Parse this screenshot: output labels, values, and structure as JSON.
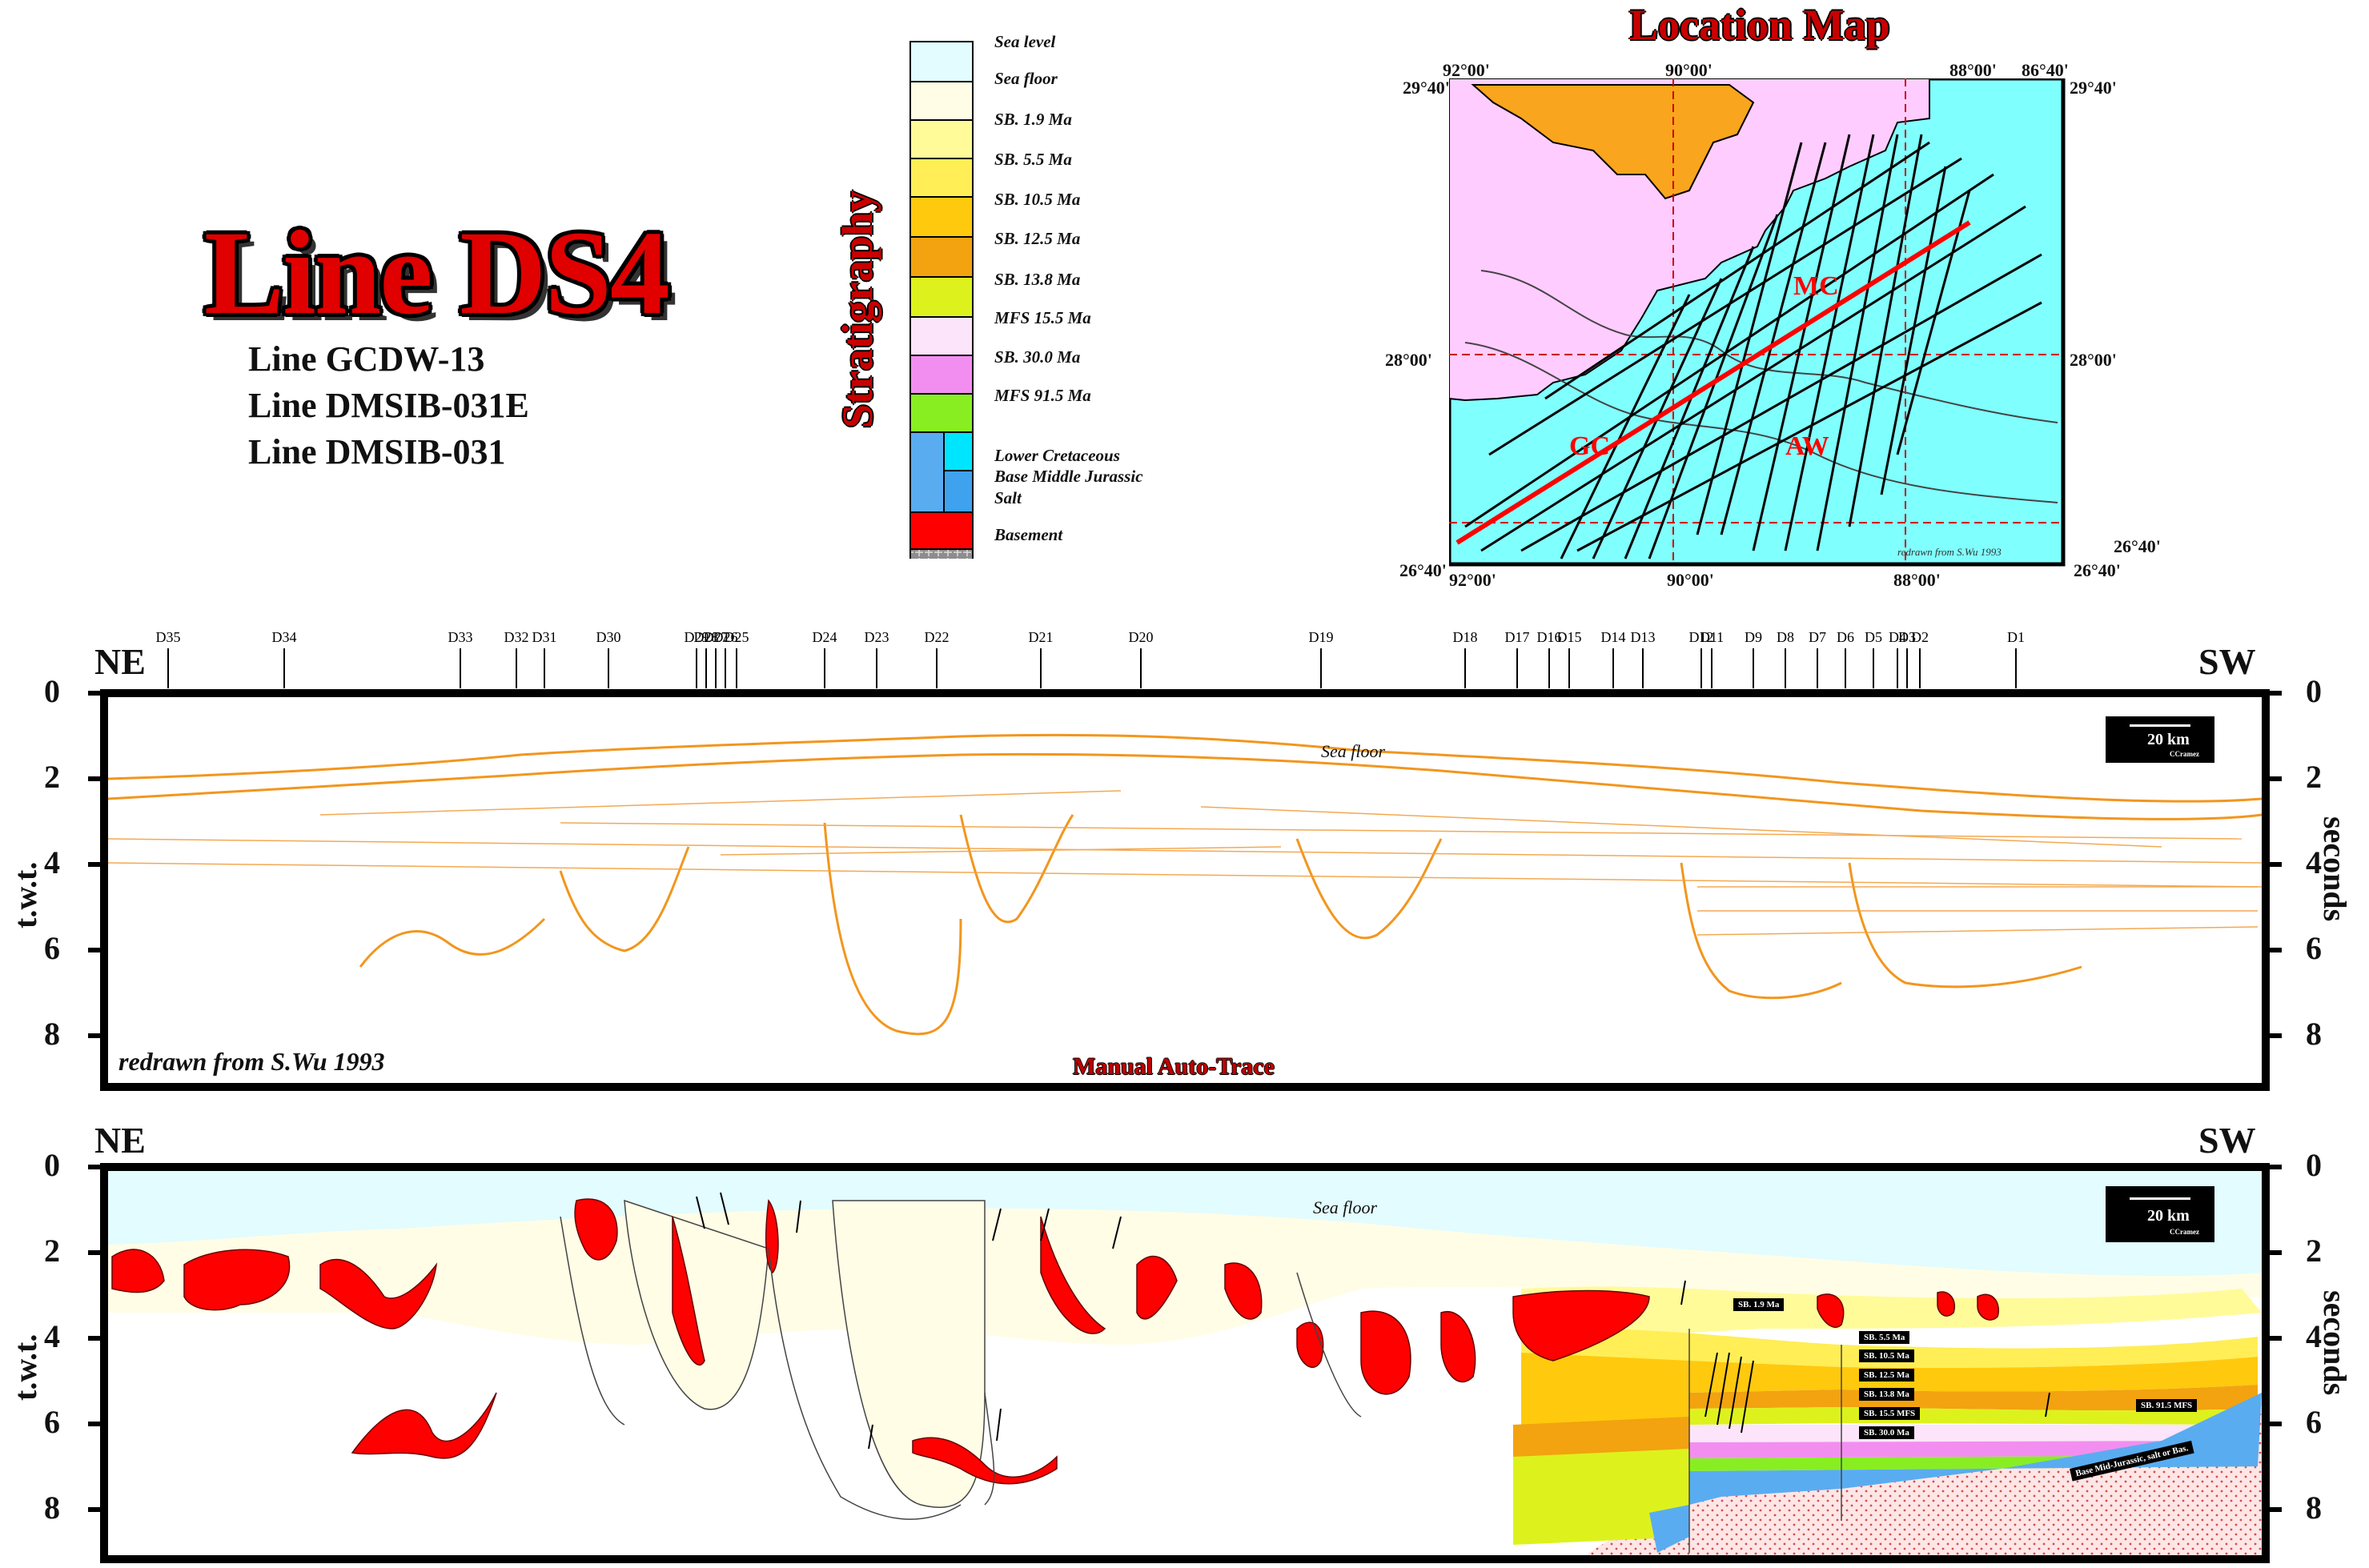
{
  "title": "Line DS4",
  "sub_lines": [
    "Line GCDW-13",
    "Line DMSIB-031E",
    "Line DMSIB-031"
  ],
  "stratigraphy": {
    "heading": "Stratigraphy",
    "items": [
      {
        "label": "Sea level",
        "color": "#e2fcff"
      },
      {
        "label": "Sea floor",
        "color": "#fffde6"
      },
      {
        "label": "SB. 1.9 Ma",
        "color": "#fffb99"
      },
      {
        "label": "SB. 5.5 Ma",
        "color": "#ffee55"
      },
      {
        "label": "SB. 10.5 Ma",
        "color": "#ffc90e"
      },
      {
        "label": "SB. 12.5 Ma",
        "color": "#f2a30f"
      },
      {
        "label": "SB. 13.8 Ma",
        "color": "#ddf21c"
      },
      {
        "label": "MFS 15.5 Ma",
        "color": "#fce4fa"
      },
      {
        "label": "SB. 30.0 Ma",
        "color": "#f28ef0"
      },
      {
        "label": "MFS 91.5 Ma",
        "color": "#88ee22"
      },
      {
        "label": "Lower Cretaceous",
        "color": "#5aacf0"
      },
      {
        "label": "Base Middle Jurassic",
        "color": "#00e5ff"
      },
      {
        "label": "Salt",
        "color": "#ff0000"
      },
      {
        "label": "Basement",
        "color": "#9a9a9a"
      }
    ]
  },
  "location_map": {
    "title": "Location Map",
    "coords": {
      "tl_lon": "92°00'",
      "tl_lat": "29°40'",
      "top_mid": "90°00'",
      "top_right": "88°00'",
      "tr_lon": "86°40'",
      "tr_lat": "29°40'",
      "left_mid_lat": "28°00'",
      "right_mid_lat": "28°00'",
      "bl_lat": "26°40'",
      "bl_lon": "92°00'",
      "bottom_mid": "90°00'",
      "bottom_right": "88°00'",
      "br_lat": "26°40'",
      "br_lat2": "26°40'"
    },
    "area_labels": [
      "MC",
      "GC",
      "AW"
    ],
    "credit": "redrawn from S.Wu 1993",
    "colors": {
      "land": "#ffccff",
      "water": "#80ffff",
      "delta": "#f9a51e",
      "line": "#ff0000"
    }
  },
  "section": {
    "left_label": "NE",
    "right_label": "SW",
    "y_axis_ticks": [
      "0",
      "2",
      "4",
      "6",
      "8"
    ],
    "y_left_label": "t.w.t.",
    "y_right_label": "seconds",
    "scale_label": "20 km",
    "scale_credit": "CCramez",
    "sea_floor_label": "Sea floor",
    "credit": "redrawn from S.Wu 1993",
    "autotrace_label": "Manual Auto-Trace",
    "wells": [
      "D35",
      "D34",
      "D33",
      "D32",
      "D31",
      "D30",
      "D29",
      "D28",
      "D27",
      "D26",
      "D25",
      "D24",
      "D23",
      "D22",
      "D21",
      "D20",
      "D19",
      "D18",
      "D17",
      "D16",
      "D15",
      "D14",
      "D13",
      "D12",
      "D11",
      "D9",
      "D8",
      "D7",
      "D6",
      "D5",
      "D4",
      "D3",
      "D2",
      "D1"
    ],
    "interp_tags": [
      "SB. 1.9 Ma",
      "SB. 5.5 Ma",
      "SB. 10.5 Ma",
      "SB. 12.5 Ma",
      "SB. 13.8 Ma",
      "SB. 15.5 MFS",
      "SB. 30.0 Ma",
      "SB. 91.5 MFS",
      "Base Mid-Jurassic, salt or Bas."
    ]
  }
}
